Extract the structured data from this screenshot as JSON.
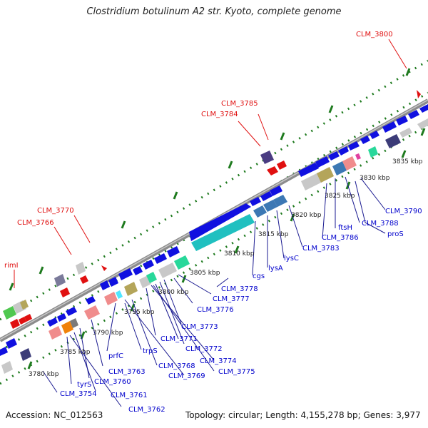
{
  "title": "Clostridium botulinum A2 str. Kyoto, complete genome",
  "footer": {
    "accession": "Accession: NC_012563",
    "summary": "Topology: circular; Length: 4,155,278 bp; Genes: 3,977"
  },
  "colors": {
    "backbone": "#8c8c8c",
    "tick": "#1e7a1e",
    "cds": "#1010e0",
    "cyan": "#20c0c0",
    "label_gene": "#0000cc",
    "label_highlight": "#e01010",
    "kbp": "#222222"
  },
  "scale_labels": [
    "3780 kbp",
    "3785 kbp",
    "3790 kbp",
    "3795 kbp",
    "3800 kbp",
    "3805 kbp",
    "3810 kbp",
    "3815 kbp",
    "3820 kbp",
    "3825 kbp",
    "3830 kbp",
    "3835 kbp"
  ],
  "red_labels": [
    "CLM_3800",
    "CLM_3785",
    "CLM_3784",
    "CLM_3770",
    "CLM_3766",
    "rimI"
  ],
  "blue_labels": [
    "CLM_3790",
    "proS",
    "CLM_3788",
    "ftsH",
    "CLM_3786",
    "CLM_3783",
    "lysC",
    "lysA",
    "cgs",
    "CLM_3778",
    "CLM_3777",
    "CLM_3776",
    "CLM_3773",
    "CLM_3772",
    "CLM_3771",
    "CLM_3774",
    "CLM_3775",
    "CLM_3768",
    "CLM_3769",
    "trpS",
    "prfC",
    "CLM_3763",
    "CLM_3760",
    "CLM_3761",
    "CLM_3762",
    "tyrS",
    "CLM_3754"
  ]
}
